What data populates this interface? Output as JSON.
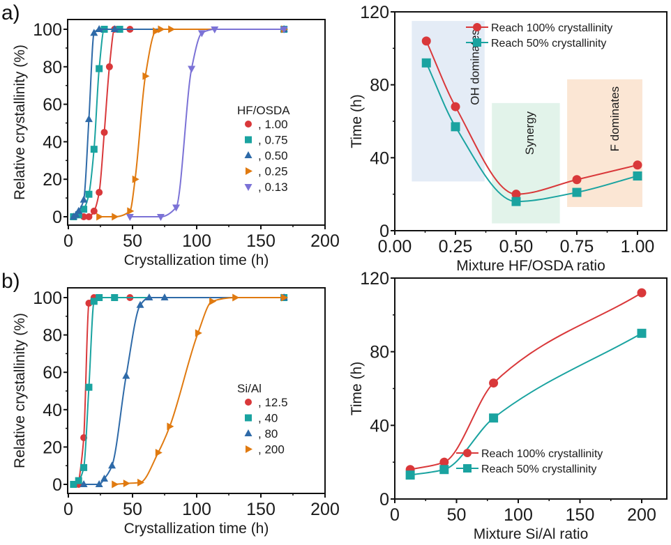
{
  "figure": {
    "panel_labels": [
      "a)",
      "b)"
    ]
  },
  "chart_data": [
    {
      "id": "a-left",
      "type": "line",
      "title": "",
      "xlabel": "Crystallization time (h)",
      "ylabel": "Relative crystallinity (%)",
      "xlim": [
        0,
        200
      ],
      "ylim": [
        -4,
        104
      ],
      "xticks": [
        0,
        50,
        100,
        150,
        200
      ],
      "yticks": [
        0,
        20,
        40,
        60,
        80,
        100
      ],
      "grid": false,
      "legend": {
        "title": "HF/OSDA",
        "placement": "center-right"
      },
      "series": [
        {
          "name": ", 1.00",
          "color": "#d9383a",
          "marker": "circle",
          "x": [
            12,
            16,
            20,
            24,
            28,
            32,
            36,
            48,
            168
          ],
          "y": [
            0,
            0,
            3,
            13,
            45,
            80,
            100,
            100,
            100
          ]
        },
        {
          "name": ", 0.75",
          "color": "#1aa3a0",
          "marker": "square",
          "x": [
            4,
            8,
            12,
            16,
            20,
            24,
            28,
            40,
            168
          ],
          "y": [
            0,
            1,
            4,
            12,
            36,
            79,
            100,
            100,
            100
          ]
        },
        {
          "name": ", 0.50",
          "color": "#2e6aa8",
          "marker": "triangle-up",
          "x": [
            4,
            6,
            8,
            12,
            16,
            20,
            24,
            36,
            168
          ],
          "y": [
            0,
            1,
            3,
            9,
            52,
            98,
            100,
            100,
            100
          ]
        },
        {
          "name": ", 0.25",
          "color": "#e07a10",
          "marker": "triangle-right",
          "x": [
            24,
            36,
            48,
            52,
            60,
            68,
            72,
            80,
            168
          ],
          "y": [
            0,
            0,
            3,
            20,
            75,
            99,
            100,
            100,
            100
          ]
        },
        {
          "name": ", 0.13",
          "color": "#7b72d6",
          "marker": "triangle-down",
          "x": [
            48,
            72,
            84,
            96,
            104,
            114,
            168
          ],
          "y": [
            0,
            0,
            5,
            79,
            98,
            100,
            100
          ]
        }
      ]
    },
    {
      "id": "a-right",
      "type": "line",
      "title": "",
      "xlabel": "Mixture HF/OSDA ratio",
      "ylabel": "Time (h)",
      "xlim": [
        0,
        1.12
      ],
      "ylim": [
        0,
        120
      ],
      "xticks": [
        "0.00",
        "0.25",
        "0.50",
        "0.75",
        "1.00"
      ],
      "xtick_values": [
        0,
        0.25,
        0.5,
        0.75,
        1.0
      ],
      "yticks": [
        0,
        40,
        80,
        120
      ],
      "grid": false,
      "legend": {
        "placement": "top-right"
      },
      "regions": [
        {
          "label": "OH dominates",
          "x": [
            0.07,
            0.37
          ],
          "y": [
            27,
            115
          ],
          "color": "#e4ecf6"
        },
        {
          "label": "Synergy",
          "x": [
            0.4,
            0.68
          ],
          "y": [
            4,
            70
          ],
          "color": "#e2f3ea"
        },
        {
          "label": "F dominates",
          "x": [
            0.71,
            1.02
          ],
          "y": [
            13,
            83
          ],
          "color": "#fbe6d4"
        }
      ],
      "series": [
        {
          "name": "Reach 100% crystallinity",
          "color": "#d9383a",
          "marker": "circle",
          "x": [
            0.13,
            0.25,
            0.5,
            0.75,
            1.0
          ],
          "y": [
            104,
            68,
            20,
            28,
            36
          ]
        },
        {
          "name": "Reach 50% crystallinity",
          "color": "#1aa3a0",
          "marker": "square",
          "x": [
            0.13,
            0.25,
            0.5,
            0.75,
            1.0
          ],
          "y": [
            92,
            57,
            16,
            21,
            30
          ]
        }
      ]
    },
    {
      "id": "b-left",
      "type": "line",
      "title": "",
      "xlabel": "Crystallization time (h)",
      "ylabel": "Relative crystallinity (%)",
      "xlim": [
        0,
        200
      ],
      "ylim": [
        -4,
        104
      ],
      "xticks": [
        0,
        50,
        100,
        150,
        200
      ],
      "yticks": [
        0,
        20,
        40,
        60,
        80,
        100
      ],
      "grid": false,
      "legend": {
        "title": "Si/Al",
        "placement": "center-right"
      },
      "series": [
        {
          "name": ", 12.5",
          "color": "#d9383a",
          "marker": "circle",
          "x": [
            8,
            12,
            16,
            20,
            24,
            48,
            168
          ],
          "y": [
            0,
            25,
            97,
            100,
            100,
            100,
            100
          ]
        },
        {
          "name": ", 40",
          "color": "#1aa3a0",
          "marker": "square",
          "x": [
            4,
            8,
            12,
            16,
            20,
            24,
            36,
            168
          ],
          "y": [
            0,
            2,
            9,
            52,
            98,
            100,
            100,
            100
          ]
        },
        {
          "name": ", 80",
          "color": "#2e6aa8",
          "marker": "triangle-up",
          "x": [
            12,
            24,
            28,
            34,
            45,
            56,
            63,
            75,
            168
          ],
          "y": [
            0,
            0,
            3,
            10,
            58,
            96,
            100,
            100,
            100
          ]
        },
        {
          "name": ", 200",
          "color": "#e07a10",
          "marker": "triangle-right",
          "x": [
            36,
            45,
            56,
            70,
            79,
            101,
            112,
            130,
            168
          ],
          "y": [
            0,
            0.5,
            1,
            17,
            31,
            81,
            98,
            100,
            100
          ]
        }
      ]
    },
    {
      "id": "b-right",
      "type": "line",
      "title": "",
      "xlabel": "Mixture Si/Al ratio",
      "ylabel": "Time (h)",
      "xlim": [
        0,
        220
      ],
      "ylim": [
        0,
        120
      ],
      "xticks": [
        0,
        50,
        100,
        150,
        200
      ],
      "yticks": [
        0,
        40,
        80,
        120
      ],
      "grid": false,
      "legend": {
        "placement": "bottom-right"
      },
      "series": [
        {
          "name": "Reach 100% crystallinity",
          "color": "#d9383a",
          "marker": "circle",
          "x": [
            12.5,
            40,
            80,
            200
          ],
          "y": [
            16,
            20,
            63,
            112
          ]
        },
        {
          "name": "Reach 50% crystallinity",
          "color": "#1aa3a0",
          "marker": "square",
          "x": [
            12.5,
            40,
            80,
            200
          ],
          "y": [
            13,
            16,
            44,
            90
          ]
        }
      ]
    }
  ]
}
